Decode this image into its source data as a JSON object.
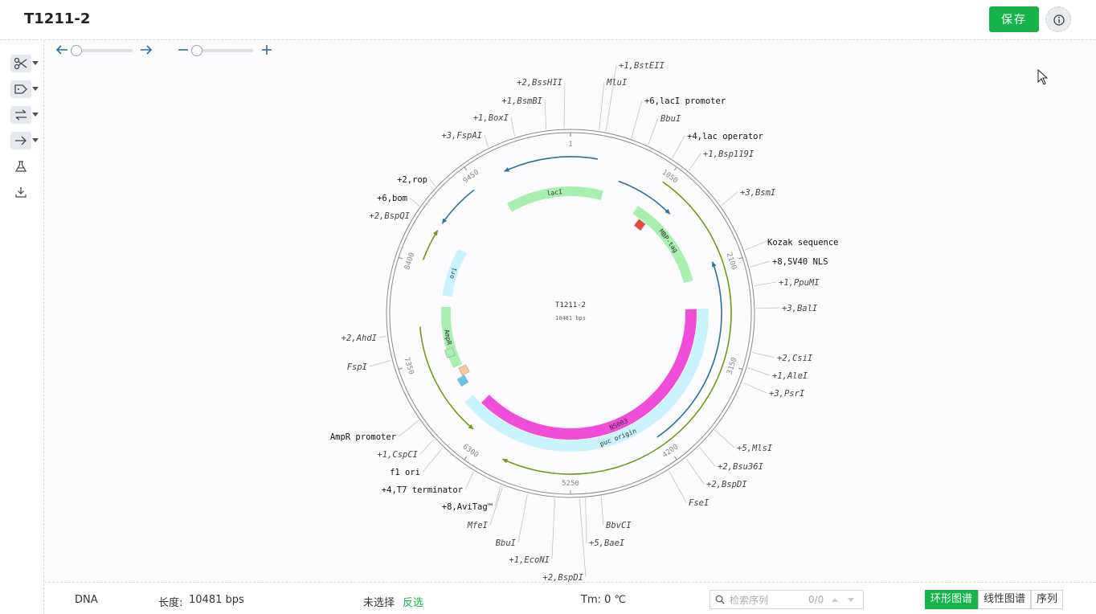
{
  "header": {
    "title": "T1211-2",
    "save_label": "保存",
    "info_icon": "info-icon"
  },
  "toolbar": {
    "tools": [
      "scissors-icon",
      "tag-icon",
      "swap-icon",
      "arrow-right-icon",
      "flask-icon",
      "download-icon"
    ]
  },
  "zoom_controls": {
    "rotate_icons": [
      "arrow-left-icon",
      "arrow-right-icon"
    ],
    "zoom_icons": [
      "minus-icon",
      "plus-icon"
    ]
  },
  "map": {
    "name": "T1211-2",
    "length_label": "10481 bps",
    "ticks": [
      "1",
      "1050",
      "2100",
      "3150",
      "4200",
      "5250",
      "6300",
      "7350",
      "8400",
      "9450"
    ],
    "features": [
      "lacI",
      "MBP-tag",
      "NS003",
      "puc origin",
      "AmpR",
      "ori"
    ],
    "labels_right": [
      "+1,BstEII",
      "MluI",
      "+6,lacI promoter",
      "BbuI",
      "+4,lac operator",
      "+1,Bsp119I",
      "+3,BsmI",
      "Kozak sequence",
      "+8,SV40 NLS",
      "+1,PpuMI",
      "+3,BalI",
      "+2,CsiI",
      "+1,AleI",
      "+3,PsrI",
      "+5,MlsI",
      "+2,Bsu36I",
      "+2,BspDI",
      "FseI",
      "BbvCI",
      "+5,BaeI"
    ],
    "labels_left": [
      "+2,BssHII",
      "+1,BsmBI",
      "+1,BoxI",
      "+3,FspAI",
      "+2,rop",
      "+6,bom",
      "+2,BspQI",
      "+2,AhdI",
      "FspI",
      "AmpR promoter",
      "+1,CspCI",
      "f1 ori",
      "+4,T7 terminator",
      "+8,AviTag™",
      "MfeI",
      "BbuI",
      "+1,EcoNI",
      "+2,BspDI"
    ]
  },
  "footer": {
    "type": "DNA",
    "length_label": "长度:",
    "length_value": "10481 bps",
    "selection": "未选择",
    "invert": "反选",
    "tm": "Tm: 0 ℃",
    "search_placeholder": "检索序列",
    "search_count": "0/0",
    "tabs": [
      "环形图谱",
      "线性图谱",
      "序列"
    ]
  }
}
